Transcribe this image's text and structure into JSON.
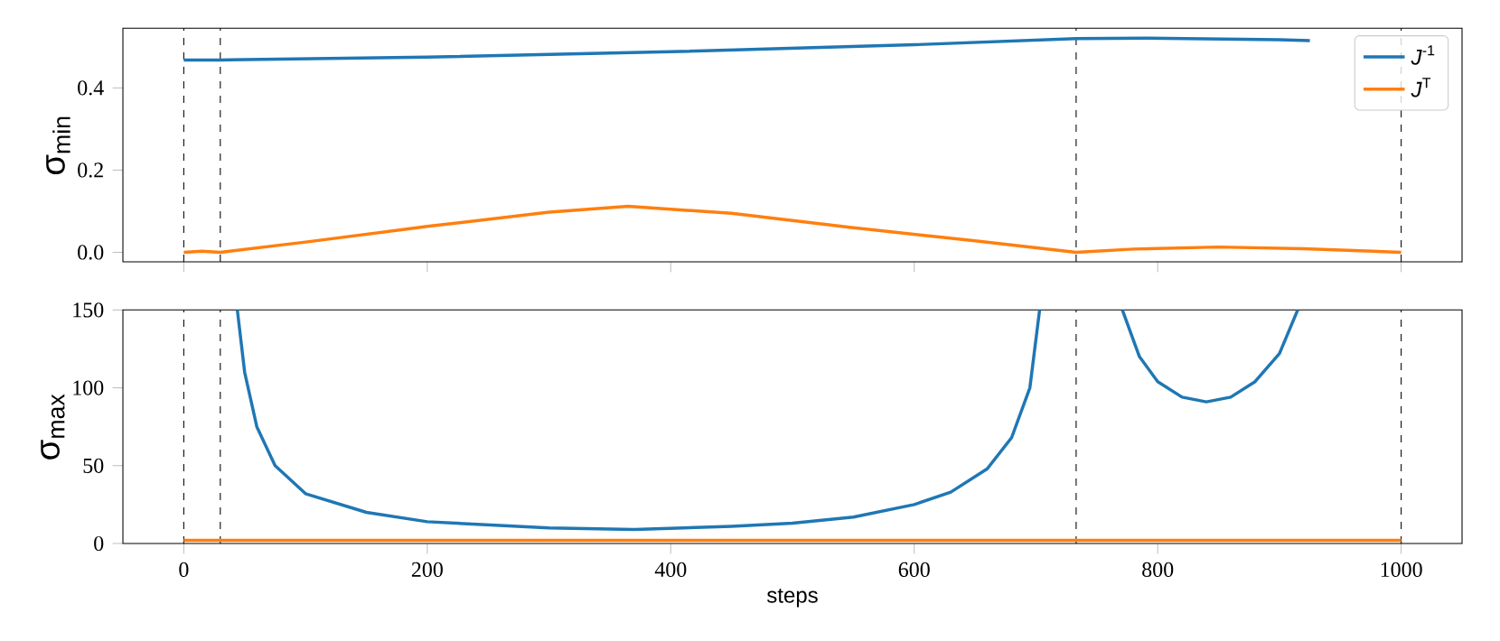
{
  "chart_data": [
    {
      "type": "line",
      "ylabel": "σ$_{min}$",
      "xlim": [
        -50,
        1050
      ],
      "xticks": [
        0,
        200,
        400,
        600,
        800,
        1000
      ],
      "ylim": [
        -0.023,
        0.545
      ],
      "yticks": [
        {
          "value": 0,
          "label": "0.0"
        },
        0.2,
        0.4
      ],
      "tick_labels": "y",
      "legend": "top right",
      "grid": false,
      "series": [
        {
          "name": "*J*$^{-1}$",
          "color": "#1f77b4",
          "x": [
            0,
            30,
            200,
            400,
            600,
            733,
            790,
            900,
            925
          ],
          "values": [
            0.468,
            0.468,
            0.475,
            0.488,
            0.505,
            0.52,
            0.521,
            0.517,
            0.515
          ]
        },
        {
          "name": "*J*$^{T}$",
          "color": "#ff7f0e",
          "x": [
            0,
            15,
            30,
            100,
            200,
            300,
            365,
            450,
            550,
            650,
            733,
            780,
            850,
            920,
            1000
          ],
          "values": [
            0,
            0.003,
            0,
            0.025,
            0.063,
            0.098,
            0.112,
            0.095,
            0.06,
            0.028,
            0,
            0.008,
            0.013,
            0.009,
            0
          ]
        }
      ],
      "ref_lines": [
        {
          "axis": "x",
          "value": 0,
          "color": "#000000",
          "line_style": "dashed"
        },
        {
          "axis": "x",
          "value": 30,
          "color": "#000000",
          "line_style": "dashed"
        },
        {
          "axis": "x",
          "value": 733,
          "color": "#000000",
          "line_style": "dashed"
        },
        {
          "axis": "x",
          "value": 1000,
          "color": "#000000",
          "line_style": "dashed"
        }
      ]
    },
    {
      "type": "line",
      "ylabel": "σ$_{max}$",
      "xlabel": "steps",
      "xlim": [
        -50,
        1050
      ],
      "xticks": [
        0,
        200,
        400,
        600,
        800,
        1000
      ],
      "ylim": [
        0,
        150
      ],
      "yticks": [
        0,
        50,
        100,
        150
      ],
      "grid": false,
      "series": [
        {
          "color": "#1f77b4",
          "x": [
            44,
            50,
            60,
            75,
            100,
            150,
            200,
            250,
            300,
            370,
            450,
            500,
            550,
            600,
            630,
            660,
            680,
            695,
            703,
            740,
            771,
            785,
            800,
            820,
            840,
            860,
            880,
            900,
            915
          ],
          "values": [
            150,
            110,
            75,
            50,
            32,
            20,
            14,
            12,
            10,
            9,
            11,
            13,
            17,
            25,
            33,
            48,
            68,
            100,
            150,
            null,
            150,
            120,
            104,
            94,
            91,
            94,
            104,
            122,
            150
          ]
        },
        {
          "color": "#ff7f0e",
          "x": [
            0,
            1000
          ],
          "values": [
            2,
            2
          ]
        }
      ],
      "ref_lines": [
        {
          "axis": "x",
          "value": 0,
          "color": "#000000",
          "line_style": "dashed"
        },
        {
          "axis": "x",
          "value": 30,
          "color": "#000000",
          "line_style": "dashed"
        },
        {
          "axis": "x",
          "value": 733,
          "color": "#000000",
          "line_style": "dashed"
        },
        {
          "axis": "x",
          "value": 1000,
          "color": "#000000",
          "line_style": "dashed"
        }
      ]
    }
  ]
}
